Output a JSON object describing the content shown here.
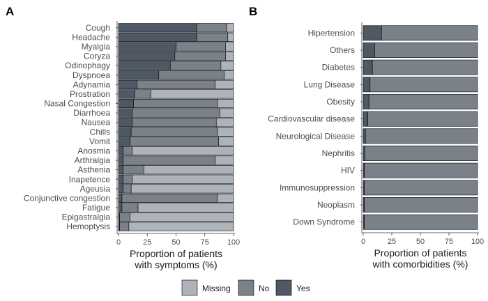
{
  "colors": {
    "Missing": "#aeb3b9",
    "No": "#7b8189",
    "Yes": "#4f5966",
    "stroke": "#000000"
  },
  "legend": {
    "items": [
      "Missing",
      "No",
      "Yes"
    ],
    "placement": "bottom"
  },
  "chart_data": [
    {
      "panel_label": "A",
      "type": "bar",
      "orientation": "horizontal",
      "stacked": true,
      "xlabel_lines": [
        "Proportion of patients",
        "with symptoms (%)"
      ],
      "xlim": [
        0,
        100
      ],
      "ticks": [
        "0",
        "25",
        "50",
        "75",
        "100"
      ],
      "grid": false,
      "categories": [
        "Cough",
        "Headache",
        "Myalgia",
        "Coryza",
        "Odinophagy",
        "Dyspnoea",
        "Adynamia",
        "Prostration",
        "Nasal Congestion",
        "Diarrhoea",
        "Nausea",
        "Chills",
        "Vomit",
        "Anosmia",
        "Arthralgia",
        "Asthenia",
        "Inapetence",
        "Ageusia",
        "Conjunctive congestion",
        "Fatigue",
        "Epigastralgia",
        "Hemoptysis"
      ],
      "series": [
        {
          "name": "Yes",
          "values": [
            68,
            68,
            50,
            49,
            45,
            35,
            16,
            14,
            13,
            12,
            12,
            11,
            10,
            4,
            4,
            4,
            4,
            4,
            3,
            3,
            1,
            1
          ]
        },
        {
          "name": "No",
          "values": [
            26,
            27,
            43,
            44,
            44,
            57,
            68,
            14,
            73,
            76,
            73,
            75,
            77,
            8,
            80,
            18,
            8,
            7,
            83,
            14,
            9,
            8
          ]
        },
        {
          "name": "Missing",
          "values": [
            6,
            5,
            7,
            7,
            11,
            8,
            16,
            72,
            14,
            12,
            15,
            14,
            13,
            88,
            16,
            78,
            88,
            89,
            14,
            83,
            90,
            91
          ]
        }
      ]
    },
    {
      "panel_label": "B",
      "type": "bar",
      "orientation": "horizontal",
      "stacked": true,
      "xlabel_lines": [
        "Proportion of patients",
        "with comorbidities (%)"
      ],
      "xlim": [
        0,
        100
      ],
      "ticks": [
        "0",
        "25",
        "50",
        "75",
        "100"
      ],
      "grid": false,
      "categories": [
        "Hipertension",
        "Others",
        "Diabetes",
        "Lung Disease",
        "Obesity",
        "Cardiovascular disease",
        "Neurological Disease",
        "Nephritis",
        "HIV",
        "Immunosuppression",
        "Neoplasm",
        "Down Syndrome"
      ],
      "series": [
        {
          "name": "Yes",
          "values": [
            16,
            10,
            8,
            6,
            5,
            4,
            2,
            1.5,
            1,
            1,
            1,
            1
          ]
        },
        {
          "name": "No",
          "values": [
            84,
            90,
            92,
            94,
            95,
            96,
            98,
            98.5,
            99,
            99,
            99,
            99
          ]
        }
      ]
    }
  ]
}
